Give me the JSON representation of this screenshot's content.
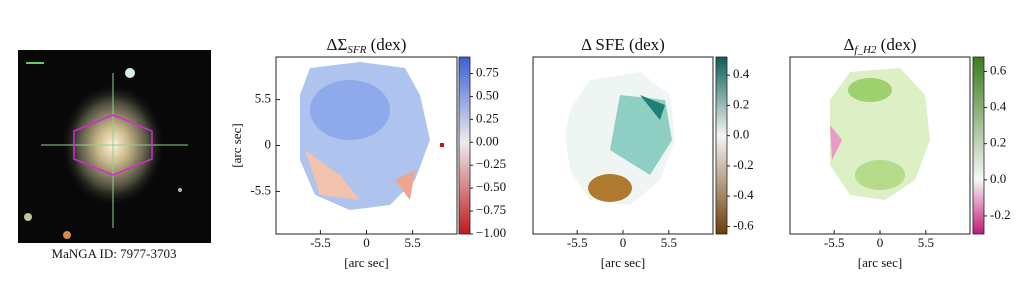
{
  "image": {
    "caption": "MaNGA ID: 7977-3703"
  },
  "chart_data": [
    {
      "type": "heatmap",
      "title": [
        "ΔΣ",
        "SFR",
        " (dex)"
      ],
      "xlabel": "[arc sec]",
      "ylabel": "[arc sec]",
      "xlim": [
        -10.8,
        10.8
      ],
      "ylim": [
        -10.6,
        10.6
      ],
      "xticks": [
        -5.5,
        0,
        5.5
      ],
      "yticks": [
        5.5,
        0,
        -5.5
      ],
      "clim": [
        -1.0,
        0.93
      ],
      "colormap": [
        "#c0171f",
        "#ececec",
        "#3a5ed8"
      ],
      "cticks": [
        {
          "value": 0.75,
          "label": "0.75"
        },
        {
          "value": 0.5,
          "label": "0.50"
        },
        {
          "value": 0.25,
          "label": "0.25"
        },
        {
          "value": 0,
          "label": "0.00"
        },
        {
          "value": -0.25,
          "label": "−0.25"
        },
        {
          "value": -0.5,
          "label": "−0.50"
        },
        {
          "value": -0.75,
          "label": "−0.75"
        },
        {
          "value": -1.0,
          "label": "−1.00"
        }
      ]
    },
    {
      "type": "heatmap",
      "title": [
        "Δ SFE",
        "",
        " (dex)"
      ],
      "xlabel": "[arc sec]",
      "xlim": [
        -10.8,
        10.8
      ],
      "ylim": [
        -10.6,
        10.6
      ],
      "xticks": [
        -5.5,
        0,
        5.5
      ],
      "clim": [
        -0.65,
        0.52
      ],
      "colormap": [
        "#6b3e07",
        "#f5f5f5",
        "#0b5e55"
      ],
      "cticks": [
        0.4,
        0.2,
        {
          "value": 0,
          "label": "0.0"
        },
        -0.2,
        -0.4,
        -0.6
      ]
    },
    {
      "type": "heatmap",
      "title": [
        "Δ",
        "f_H2",
        " (dex)"
      ],
      "xlabel": "[arc sec]",
      "xlim": [
        -10.8,
        10.8
      ],
      "ylim": [
        -10.6,
        10.6
      ],
      "xticks": [
        -5.5,
        0,
        5.5
      ],
      "clim": [
        -0.3,
        0.68
      ],
      "colormap": [
        "#c2187a",
        "#f7f7f7",
        "#3a7d1c"
      ],
      "cticks": [
        0.6,
        0.4,
        0.2,
        {
          "value": 0,
          "label": "0.0"
        },
        -0.2
      ]
    }
  ]
}
